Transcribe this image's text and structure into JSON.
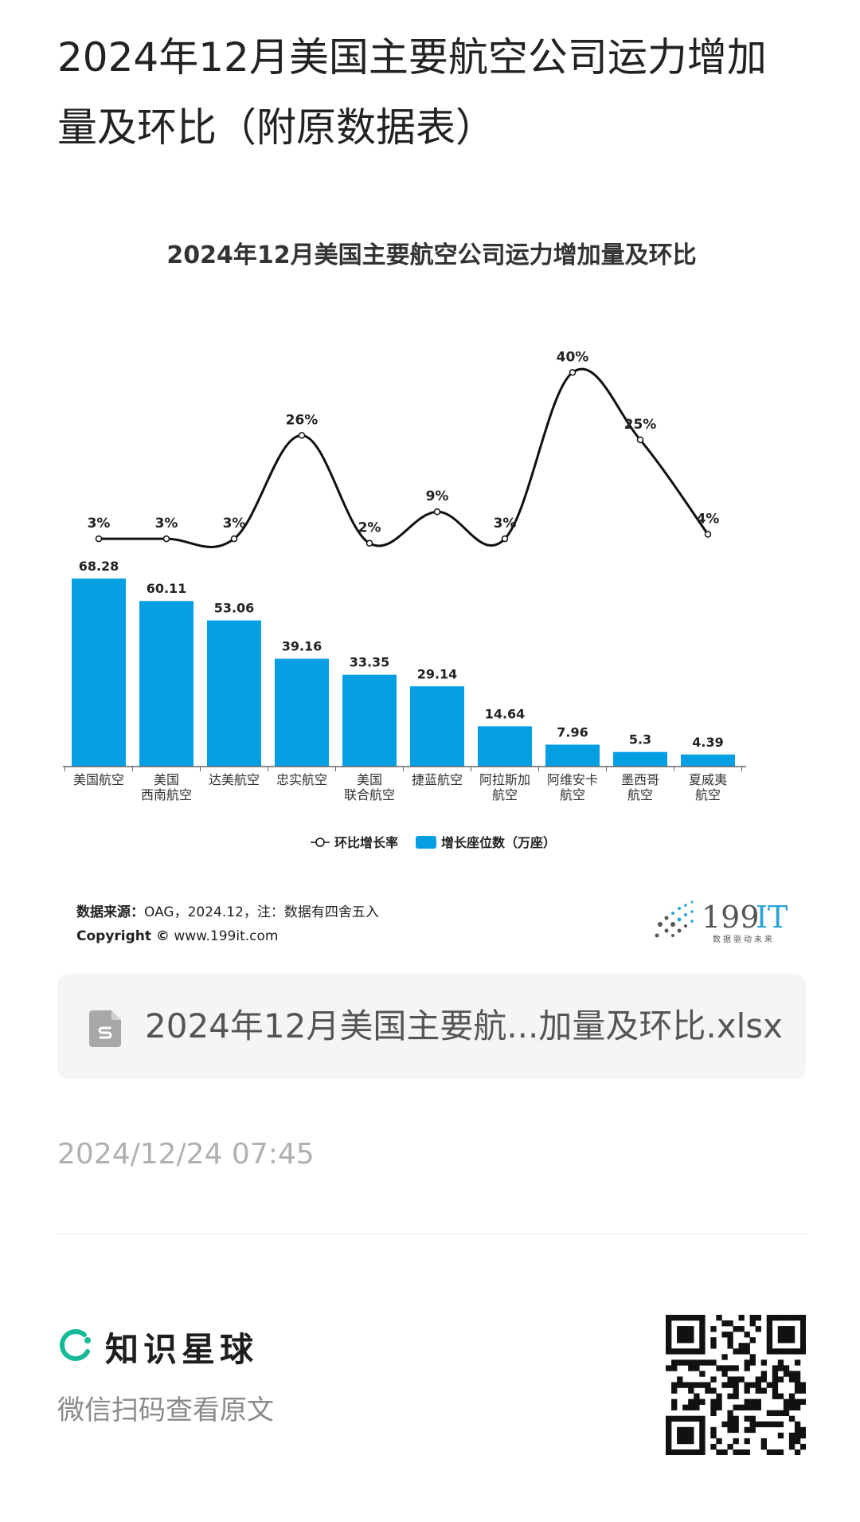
{
  "post": {
    "title": "2024年12月美国主要航空公司运力增加量及环比（附原数据表）"
  },
  "chart_data": {
    "type": "bar",
    "title": "2024年12月美国主要航空公司运力增加量及环比",
    "categories": [
      [
        "美国航空"
      ],
      [
        "美国",
        "西南航空"
      ],
      [
        "达美航空"
      ],
      [
        "忠实航空"
      ],
      [
        "美国",
        "联合航空"
      ],
      [
        "捷蓝航空"
      ],
      [
        "阿拉斯加",
        "航空"
      ],
      [
        "阿维安卡",
        "航空"
      ],
      [
        "墨西哥",
        "航空"
      ],
      [
        "夏威夷",
        "航空"
      ]
    ],
    "series": [
      {
        "name": "增长座位数（万座）",
        "type": "bar",
        "color": "#049fe3",
        "values": [
          68.28,
          60.11,
          53.06,
          39.16,
          33.35,
          29.14,
          14.64,
          7.96,
          5.3,
          4.39
        ],
        "labels": [
          "68.28",
          "60.11",
          "53.06",
          "39.16",
          "33.35",
          "29.14",
          "14.64",
          "7.96",
          "5.3",
          "4.39"
        ]
      },
      {
        "name": "环比增长率",
        "type": "line",
        "color": "#111111",
        "values": [
          3,
          3,
          3,
          26,
          2,
          9,
          3,
          40,
          25,
          4
        ],
        "labels": [
          "3%",
          "3%",
          "3%",
          "26%",
          "2%",
          "9%",
          "3%",
          "40%",
          "25%",
          "4%"
        ]
      }
    ],
    "legend": [
      "-○-环比增长率",
      "增长座位数（万座）"
    ],
    "legend_position": "bottom",
    "grid": false
  },
  "source": {
    "label": "数据来源：",
    "text": "OAG，2024.12，注：数据有四舍五入",
    "copyright_label": "Copyright ©",
    "copyright_url": "www.199it.com"
  },
  "brand": {
    "name_num": "199",
    "name_it": "IT",
    "slogan": "数据驱动未来"
  },
  "attachment": {
    "file_name": "2024年12月美国主要航...加量及环比.xlsx",
    "icon": "spreadsheet-file-icon"
  },
  "meta": {
    "timestamp": "2024/12/24 07:45"
  },
  "footer": {
    "app_name": "知识星球",
    "hint": "微信扫码查看原文",
    "icon": "zsxq-logo-icon",
    "qr": "qr-code"
  }
}
